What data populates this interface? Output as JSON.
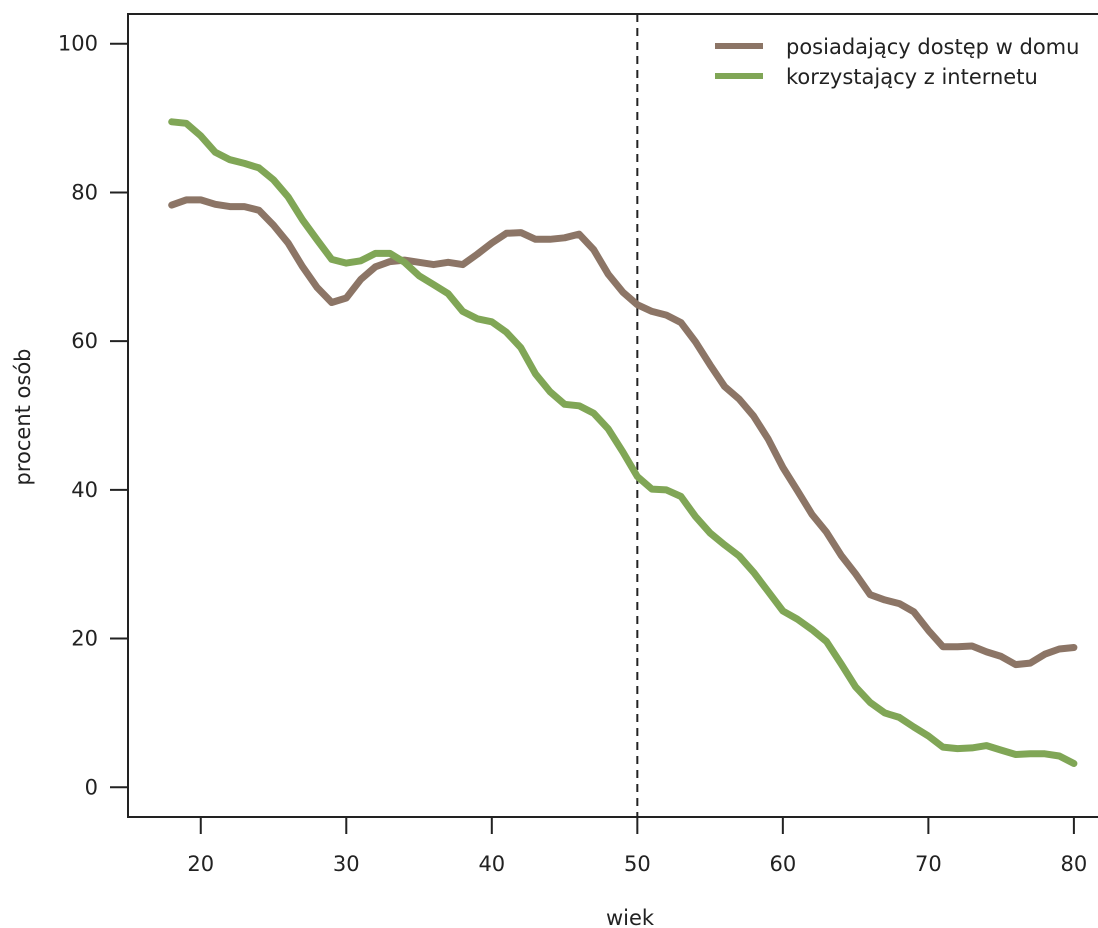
{
  "chart_data": {
    "type": "line",
    "xlabel": "wiek",
    "ylabel": "procent osób",
    "xlim": [
      15,
      82
    ],
    "ylim": [
      -4,
      104
    ],
    "xticks": [
      20,
      30,
      40,
      50,
      60,
      70,
      80
    ],
    "yticks": [
      0,
      20,
      40,
      60,
      80,
      100
    ],
    "reference_line": {
      "x": 50,
      "style": "dashed",
      "color": "#222222"
    },
    "legend_placement": "top-right",
    "x": [
      18,
      19,
      20,
      21,
      22,
      23,
      24,
      25,
      26,
      27,
      28,
      29,
      30,
      31,
      32,
      33,
      34,
      35,
      36,
      37,
      38,
      39,
      40,
      41,
      42,
      43,
      44,
      45,
      46,
      47,
      48,
      49,
      50,
      51,
      52,
      53,
      54,
      55,
      56,
      57,
      58,
      59,
      60,
      61,
      62,
      63,
      64,
      65,
      66,
      67,
      68,
      69,
      70,
      71,
      72,
      73,
      74,
      75,
      76,
      77,
      78,
      79,
      80
    ],
    "series": [
      {
        "name": "posiadający dostęp w domu",
        "color": "#8c7566",
        "values": [
          78.3,
          79.0,
          79.0,
          78.4,
          78.1,
          78.1,
          77.6,
          75.6,
          73.2,
          70.0,
          67.2,
          65.2,
          65.8,
          68.3,
          70.0,
          70.7,
          70.9,
          70.6,
          70.3,
          70.6,
          70.3,
          71.7,
          73.2,
          74.5,
          74.6,
          73.7,
          73.7,
          73.9,
          74.4,
          72.3,
          69.0,
          66.6,
          64.9,
          64.0,
          63.5,
          62.5,
          59.9,
          56.8,
          53.9,
          52.2,
          49.9,
          46.8,
          43.0,
          39.9,
          36.7,
          34.3,
          31.2,
          28.7,
          25.9,
          25.2,
          24.7,
          23.6,
          21.1,
          18.9,
          18.9,
          19.0,
          18.2,
          17.6,
          16.5,
          16.7,
          17.9,
          18.6,
          18.8
        ]
      },
      {
        "name": "korzystający z internetu",
        "color": "#80a656",
        "values": [
          89.5,
          89.3,
          87.6,
          85.4,
          84.4,
          83.9,
          83.3,
          81.7,
          79.4,
          76.3,
          73.6,
          71.0,
          70.5,
          70.8,
          71.8,
          71.8,
          70.6,
          68.8,
          67.6,
          66.4,
          64.0,
          63.0,
          62.6,
          61.2,
          59.1,
          55.6,
          53.2,
          51.5,
          51.3,
          50.3,
          48.2,
          45.1,
          41.8,
          40.1,
          40.0,
          39.1,
          36.4,
          34.2,
          32.6,
          31.1,
          28.9,
          26.3,
          23.7,
          22.6,
          21.2,
          19.6,
          16.6,
          13.5,
          11.4,
          10.0,
          9.4,
          8.1,
          6.9,
          5.4,
          5.2,
          5.3,
          5.6,
          5.0,
          4.4,
          4.5,
          4.5,
          4.2,
          3.2
        ]
      }
    ]
  }
}
